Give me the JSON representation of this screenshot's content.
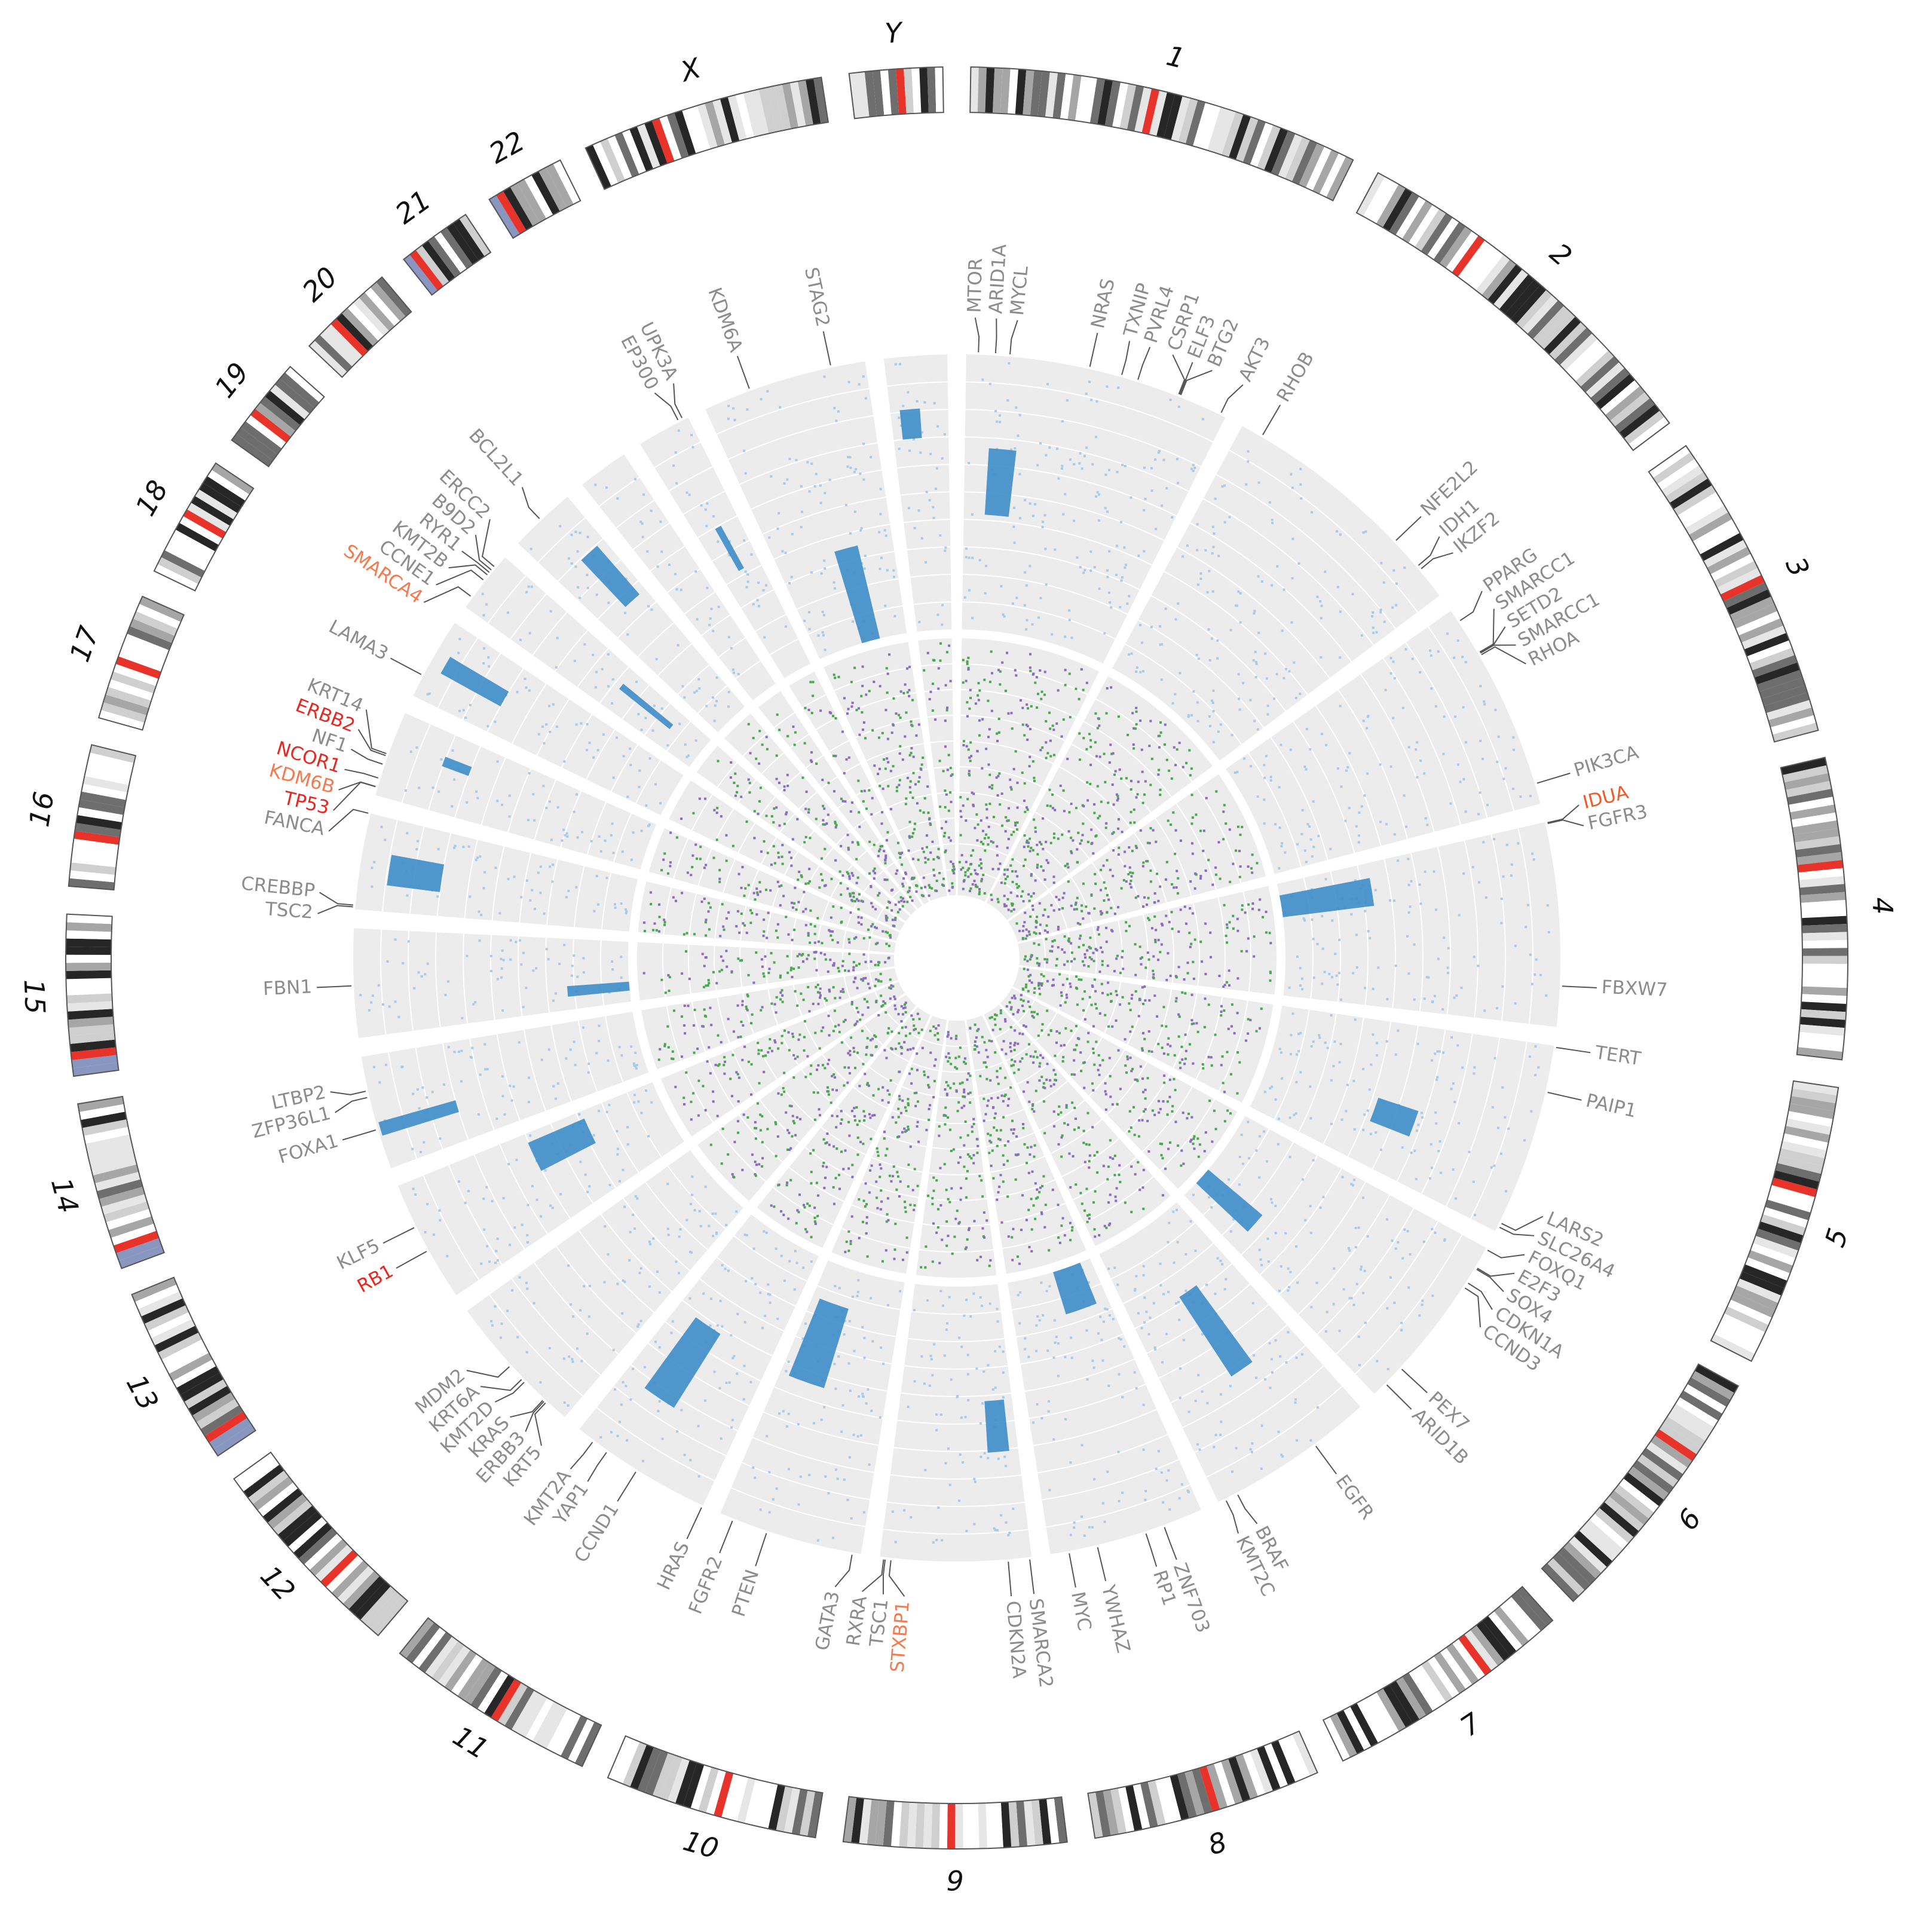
{
  "chart_data": {
    "type": "circos",
    "colors": {
      "gene": "#8c8c8c",
      "track_dense": "#3d8dc8",
      "track_light": "#a9cbe8",
      "inner_a": "#4aa84f",
      "inner_b": "#8a6cc0",
      "centromere": "#e8332a",
      "stalk": "#8896c0"
    },
    "chromosomes": [
      {
        "label": "1",
        "length": 249,
        "genes": [
          {
            "label": "MTOR",
            "pos": 11.2
          },
          {
            "label": "ARID1A",
            "pos": 27
          },
          {
            "label": "MYCL",
            "pos": 40.4
          },
          {
            "label": "NRAS",
            "pos": 115
          },
          {
            "label": "TXNIP",
            "pos": 145.4
          },
          {
            "label": "PVRL4",
            "pos": 161
          },
          {
            "label": "CSRP1",
            "pos": 201
          },
          {
            "label": "ELF3",
            "pos": 202
          },
          {
            "label": "BTG2",
            "pos": 203
          },
          {
            "label": "AKT3",
            "pos": 243.7
          }
        ]
      },
      {
        "label": "2",
        "length": 243,
        "genes": [
          {
            "label": "RHOB",
            "pos": 20.6
          },
          {
            "label": "NFE2L2",
            "pos": 178
          },
          {
            "label": "IDH1",
            "pos": 209
          },
          {
            "label": "IKZF2",
            "pos": 213
          }
        ]
      },
      {
        "label": "3",
        "length": 198,
        "genes": [
          {
            "label": "PPARG",
            "pos": 12.3
          },
          {
            "label": "SMARCC1",
            "pos": 46.5
          },
          {
            "label": "SETD2",
            "pos": 47.1
          },
          {
            "label": "SMARCC1",
            "pos": 47.6
          },
          {
            "label": "RHOA",
            "pos": 49.4
          },
          {
            "label": "PIK3CA",
            "pos": 178.9
          }
        ]
      },
      {
        "label": "4",
        "length": 191,
        "genes": [
          {
            "label": "IDUA",
            "pos": 1.0,
            "color": "#f05a28"
          },
          {
            "label": "FGFR3",
            "pos": 1.8
          },
          {
            "label": "FBXW7",
            "pos": 153
          }
        ]
      },
      {
        "label": "5",
        "length": 181,
        "genes": [
          {
            "label": "TERT",
            "pos": 1.3
          },
          {
            "label": "PAIP1",
            "pos": 43.5
          },
          {
            "label": "LARS2",
            "pos": 172
          },
          {
            "label": "SLC26A4",
            "pos": 176
          }
        ]
      },
      {
        "label": "6",
        "length": 171,
        "genes": [
          {
            "label": "FOXQ1",
            "pos": 1.3
          },
          {
            "label": "E2F3",
            "pos": 20.4
          },
          {
            "label": "SOX4",
            "pos": 21.6
          },
          {
            "label": "CDKN1A",
            "pos": 36.6
          },
          {
            "label": "CCND3",
            "pos": 41.9
          },
          {
            "label": "PEX7",
            "pos": 137
          },
          {
            "label": "ARID1B",
            "pos": 157
          }
        ]
      },
      {
        "label": "7",
        "length": 159,
        "genes": [
          {
            "label": "EGFR",
            "pos": 55
          },
          {
            "label": "BRAF",
            "pos": 140
          },
          {
            "label": "KMT2C",
            "pos": 152
          }
        ]
      },
      {
        "label": "8",
        "length": 146,
        "genes": [
          {
            "label": "ZNF703",
            "pos": 37.5
          },
          {
            "label": "RP1",
            "pos": 55.5
          },
          {
            "label": "YWHAZ",
            "pos": 101.9
          },
          {
            "label": "MYC",
            "pos": 128.7
          }
        ]
      },
      {
        "label": "9",
        "length": 141,
        "genes": [
          {
            "label": "SMARCA2",
            "pos": 2
          },
          {
            "label": "CDKN2A",
            "pos": 21.9
          },
          {
            "label": "STXBP1",
            "pos": 130.4,
            "color": "#f47a50"
          },
          {
            "label": "TSC1",
            "pos": 135.8
          },
          {
            "label": "RXRA",
            "pos": 137.2
          }
        ]
      },
      {
        "label": "10",
        "length": 136,
        "genes": [
          {
            "label": "GATA3",
            "pos": 8.1
          },
          {
            "label": "PTEN",
            "pos": 89.6
          },
          {
            "label": "FGFR2",
            "pos": 123
          }
        ]
      },
      {
        "label": "11",
        "length": 135,
        "genes": [
          {
            "label": "HRAS",
            "pos": 0.5
          },
          {
            "label": "CCND1",
            "pos": 69.5
          },
          {
            "label": "YAP1",
            "pos": 102
          },
          {
            "label": "KMT2A",
            "pos": 118
          }
        ]
      },
      {
        "label": "12",
        "length": 134,
        "genes": [
          {
            "label": "KRT5",
            "pos": 22
          },
          {
            "label": "ERBB3",
            "pos": 24
          },
          {
            "label": "KRAS",
            "pos": 25.4
          },
          {
            "label": "KMT2D",
            "pos": 49.4
          },
          {
            "label": "KRT6A",
            "pos": 52.9
          },
          {
            "label": "MDM2",
            "pos": 69.2
          }
        ]
      },
      {
        "label": "13",
        "length": 115,
        "genes": [
          {
            "label": "RB1",
            "pos": 48.9,
            "color": "#e8281e"
          },
          {
            "label": "KLF5",
            "pos": 73.6
          }
        ]
      },
      {
        "label": "14",
        "length": 107,
        "genes": [
          {
            "label": "FOXA1",
            "pos": 38
          },
          {
            "label": "ZFP36L1",
            "pos": 69
          },
          {
            "label": "LTBP2",
            "pos": 75
          }
        ]
      },
      {
        "label": "15",
        "length": 102,
        "genes": [
          {
            "label": "FBN1",
            "pos": 48.7
          }
        ]
      },
      {
        "label": "16",
        "length": 90,
        "genes": [
          {
            "label": "TSC2",
            "pos": 2.1
          },
          {
            "label": "CREBBP",
            "pos": 3.8
          },
          {
            "label": "FANCA",
            "pos": 89.8
          }
        ]
      },
      {
        "label": "17",
        "length": 81,
        "genes": [
          {
            "label": "TP53",
            "pos": 7.6,
            "color": "#e8281e"
          },
          {
            "label": "KDM6B",
            "pos": 7.8,
            "color": "#f47a50"
          },
          {
            "label": "NCOR1",
            "pos": 16,
            "color": "#e8281e"
          },
          {
            "label": "NF1",
            "pos": 29.4
          },
          {
            "label": "ERBB2",
            "pos": 37.8,
            "color": "#e8281e"
          },
          {
            "label": "KRT14",
            "pos": 39.7
          }
        ]
      },
      {
        "label": "18",
        "length": 78,
        "genes": [
          {
            "label": "LAMA3",
            "pos": 21
          }
        ]
      },
      {
        "label": "19",
        "length": 59,
        "genes": [
          {
            "label": "SMARCA4",
            "pos": 11,
            "color": "#f47a50"
          },
          {
            "label": "CCNE1",
            "pos": 30
          },
          {
            "label": "KMT2B",
            "pos": 36
          },
          {
            "label": "RYR1",
            "pos": 38.9
          },
          {
            "label": "B9D2",
            "pos": 41.8
          },
          {
            "label": "ERCC2",
            "pos": 45.9
          }
        ]
      },
      {
        "label": "20",
        "length": 63,
        "genes": [
          {
            "label": "BCL2L1",
            "pos": 30.2
          }
        ]
      },
      {
        "label": "21",
        "length": 48,
        "genes": []
      },
      {
        "label": "22",
        "length": 51,
        "genes": [
          {
            "label": "EP300",
            "pos": 41.5
          },
          {
            "label": "UPK3A",
            "pos": 45.7
          }
        ]
      },
      {
        "label": "X",
        "length": 155,
        "genes": [
          {
            "label": "KDM6A",
            "pos": 44.9
          },
          {
            "label": "STAG2",
            "pos": 123
          }
        ]
      },
      {
        "label": "Y",
        "length": 59,
        "genes": []
      }
    ]
  }
}
